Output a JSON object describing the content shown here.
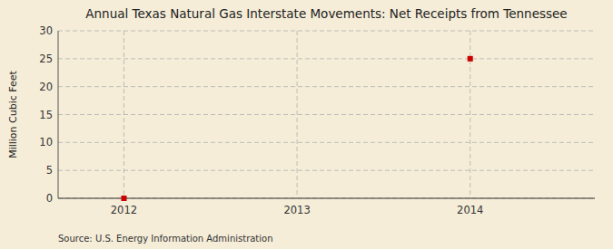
{
  "chart_data": {
    "type": "scatter",
    "title": "Annual Texas Natural Gas Interstate Movements: Net Receipts from Tennessee",
    "y_label": "Million Cubic Feet",
    "annotations": [
      "Source: U.S. Energy Information Administration"
    ],
    "x": [
      2012,
      2014
    ],
    "values": [
      0,
      25
    ],
    "color": "#CC0000",
    "marker": "square",
    "xlim": [
      2011.62,
      2014.72
    ],
    "ylim": [
      0,
      30
    ],
    "xticks": [
      2012,
      2013,
      2014
    ],
    "yticks": [
      0,
      5,
      10,
      15,
      20,
      25,
      30
    ],
    "grid": true
  }
}
